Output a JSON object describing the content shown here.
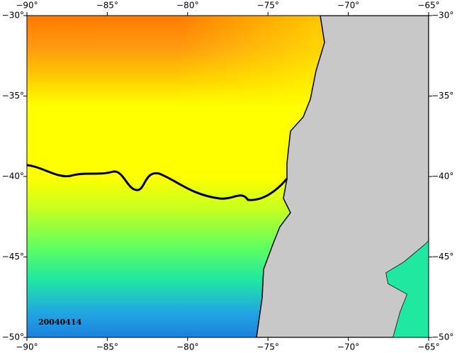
{
  "map": {
    "date_label": "20040414",
    "xlim": [
      -90,
      -65
    ],
    "ylim": [
      -50,
      -30
    ],
    "xticks": [
      {
        "value": -90,
        "label": "−90°"
      },
      {
        "value": -85,
        "label": "−85°"
      },
      {
        "value": -80,
        "label": "−80°"
      },
      {
        "value": -75,
        "label": "−75°"
      },
      {
        "value": -70,
        "label": "−70°"
      },
      {
        "value": -65,
        "label": "−65°"
      }
    ],
    "yticks": [
      {
        "value": -30,
        "label": "−30°"
      },
      {
        "value": -35,
        "label": "−35°"
      },
      {
        "value": -40,
        "label": "−40°"
      },
      {
        "value": -45,
        "label": "−45°"
      },
      {
        "value": -50,
        "label": "−50°"
      }
    ]
  }
}
